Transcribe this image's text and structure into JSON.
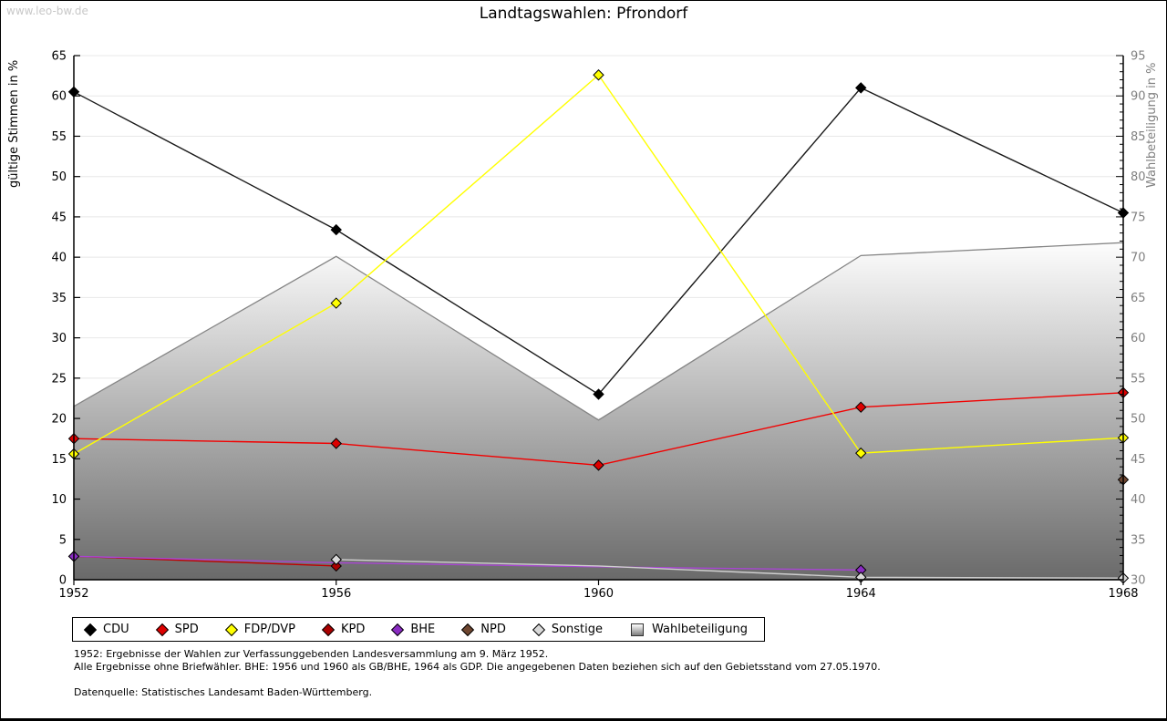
{
  "watermark": "www.leo-bw.de",
  "title": "Landtagswahlen: Pfrondorf",
  "chart_data": {
    "type": "line",
    "title": "Landtagswahlen: Pfrondorf",
    "x": [
      1952,
      1956,
      1960,
      1964,
      1968
    ],
    "ylabel_left": "gültige Stimmen in %",
    "ylabel_right": "Wahlbeteiligung in %",
    "ylim_left": [
      0,
      65
    ],
    "ylim_right": [
      30,
      95
    ],
    "ytick_major_step": 5,
    "ytick_minor_step_right": 1,
    "grid": true,
    "legend_position": "bottom",
    "axis_color_left": "#000000",
    "axis_color_right": "#808080",
    "series": [
      {
        "name": "Wahlbeteiligung",
        "axis": "right",
        "kind": "area",
        "line_color": "#858585",
        "fill_top": "#fdfdfd",
        "fill_bottom": "#6a6a6a",
        "values": [
          51.5,
          70.1,
          49.8,
          70.2,
          71.8
        ],
        "markers": [
          false,
          false,
          false,
          false,
          false
        ]
      },
      {
        "name": "CDU",
        "axis": "left",
        "kind": "line",
        "line_color": "#1a1a1a",
        "marker_color": "#000000",
        "values": [
          60.5,
          43.4,
          23.0,
          61.0,
          45.5
        ],
        "markers": [
          true,
          true,
          true,
          true,
          true
        ]
      },
      {
        "name": "SPD",
        "axis": "left",
        "kind": "line",
        "line_color": "#f20000",
        "marker_color": "#dd0000",
        "values": [
          17.5,
          16.9,
          14.2,
          21.4,
          23.2
        ],
        "markers": [
          true,
          true,
          true,
          true,
          true
        ]
      },
      {
        "name": "FDP/DVP",
        "axis": "left",
        "kind": "line",
        "line_color": "#ffff00",
        "marker_color": "#ffff00",
        "values": [
          15.6,
          34.3,
          62.6,
          15.7,
          17.6
        ],
        "markers": [
          true,
          true,
          true,
          true,
          true
        ]
      },
      {
        "name": "KPD",
        "axis": "left",
        "kind": "line",
        "line_color": "#c00000",
        "marker_color": "#aa0000",
        "values": [
          2.9,
          1.7,
          null,
          null,
          null
        ],
        "markers": [
          true,
          true,
          false,
          false,
          false
        ]
      },
      {
        "name": "BHE",
        "axis": "left",
        "kind": "line",
        "line_color": "#a846d2",
        "marker_color": "#8a2bc2",
        "values": [
          2.9,
          2.1,
          1.6,
          1.2,
          null
        ],
        "markers": [
          true,
          false,
          false,
          true,
          false
        ]
      },
      {
        "name": "NPD",
        "axis": "left",
        "kind": "line",
        "line_color": "#6f4630",
        "marker_color": "#6f4630",
        "values": [
          null,
          null,
          null,
          null,
          12.4
        ],
        "markers": [
          false,
          false,
          false,
          false,
          true
        ]
      },
      {
        "name": "Sonstige",
        "axis": "left",
        "kind": "line",
        "line_color": "#cfcfcf",
        "marker_color": "#d9d9d9",
        "values": [
          null,
          2.5,
          1.7,
          0.3,
          0.2
        ],
        "markers": [
          false,
          true,
          false,
          true,
          true
        ]
      }
    ]
  },
  "legend": {
    "items": [
      {
        "label": "CDU",
        "shape": "diamond",
        "color": "#000000"
      },
      {
        "label": "SPD",
        "shape": "diamond",
        "color": "#dd0000"
      },
      {
        "label": "FDP/DVP",
        "shape": "diamond",
        "color": "#ffff00"
      },
      {
        "label": "KPD",
        "shape": "diamond",
        "color": "#aa0000"
      },
      {
        "label": "BHE",
        "shape": "diamond",
        "color": "#8a2bc2"
      },
      {
        "label": "NPD",
        "shape": "diamond",
        "color": "#6f4630"
      },
      {
        "label": "Sonstige",
        "shape": "diamond",
        "color": "#d9d9d9"
      },
      {
        "label": "Wahlbeteiligung",
        "shape": "square-gradient",
        "color": "#9a9a9a"
      }
    ]
  },
  "notes": {
    "line1": "1952: Ergebnisse der Wahlen zur Verfassunggebenden Landesversammlung am 9. März 1952.",
    "line2": "Alle Ergebnisse ohne Briefwähler. BHE: 1956 und 1960 als GB/BHE, 1964 als GDP. Die angegebenen Daten beziehen sich auf den Gebietsstand vom 27.05.1970.",
    "source": "Datenquelle: Statistisches Landesamt Baden-Württemberg."
  }
}
